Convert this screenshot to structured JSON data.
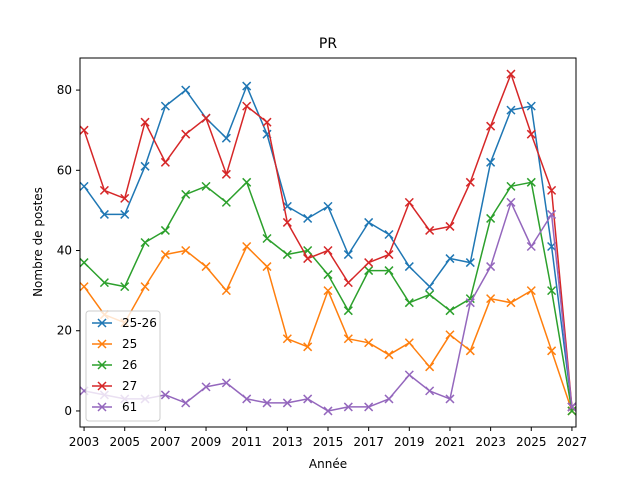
{
  "chart_data": {
    "type": "line",
    "title": "PR",
    "xlabel": "Année",
    "ylabel": "Nombre de postes",
    "xlim": [
      2002.8,
      2027.2
    ],
    "ylim": [
      -4,
      88
    ],
    "xticks": [
      2003,
      2005,
      2007,
      2009,
      2011,
      2013,
      2015,
      2017,
      2019,
      2021,
      2023,
      2025,
      2027
    ],
    "yticks": [
      0,
      20,
      40,
      60,
      80
    ],
    "grid": false,
    "legend_position": "lower-left",
    "marker": "x",
    "x": [
      2003,
      2004,
      2005,
      2006,
      2007,
      2008,
      2009,
      2010,
      2011,
      2012,
      2013,
      2014,
      2015,
      2016,
      2017,
      2018,
      2019,
      2020,
      2021,
      2022,
      2023,
      2024,
      2025,
      2026,
      2027
    ],
    "series": [
      {
        "name": "25-26",
        "color": "#1f77b4",
        "values": [
          56,
          49,
          49,
          61,
          76,
          80,
          73,
          68,
          81,
          69,
          51,
          48,
          51,
          39,
          47,
          44,
          36,
          31,
          38,
          37,
          62,
          75,
          76,
          41,
          1
        ]
      },
      {
        "name": "25",
        "color": "#ff7f0e",
        "values": [
          31,
          24,
          22,
          31,
          39,
          40,
          36,
          30,
          41,
          36,
          18,
          16,
          30,
          18,
          17,
          14,
          17,
          11,
          19,
          15,
          28,
          27,
          30,
          15,
          0
        ]
      },
      {
        "name": "26",
        "color": "#2ca02c",
        "values": [
          37,
          32,
          31,
          42,
          45,
          54,
          56,
          52,
          57,
          43,
          39,
          40,
          34,
          25,
          35,
          35,
          27,
          29,
          25,
          28,
          48,
          56,
          57,
          30,
          0
        ]
      },
      {
        "name": "27",
        "color": "#d62728",
        "values": [
          70,
          55,
          53,
          72,
          62,
          69,
          73,
          59,
          76,
          72,
          47,
          38,
          40,
          32,
          37,
          39,
          52,
          45,
          46,
          57,
          71,
          84,
          69,
          55,
          1
        ]
      },
      {
        "name": "61",
        "color": "#9467bd",
        "values": [
          5,
          4,
          3,
          3,
          4,
          2,
          6,
          7,
          3,
          2,
          2,
          3,
          0,
          1,
          1,
          3,
          9,
          5,
          3,
          27,
          36,
          52,
          41,
          49,
          1
        ]
      }
    ]
  }
}
